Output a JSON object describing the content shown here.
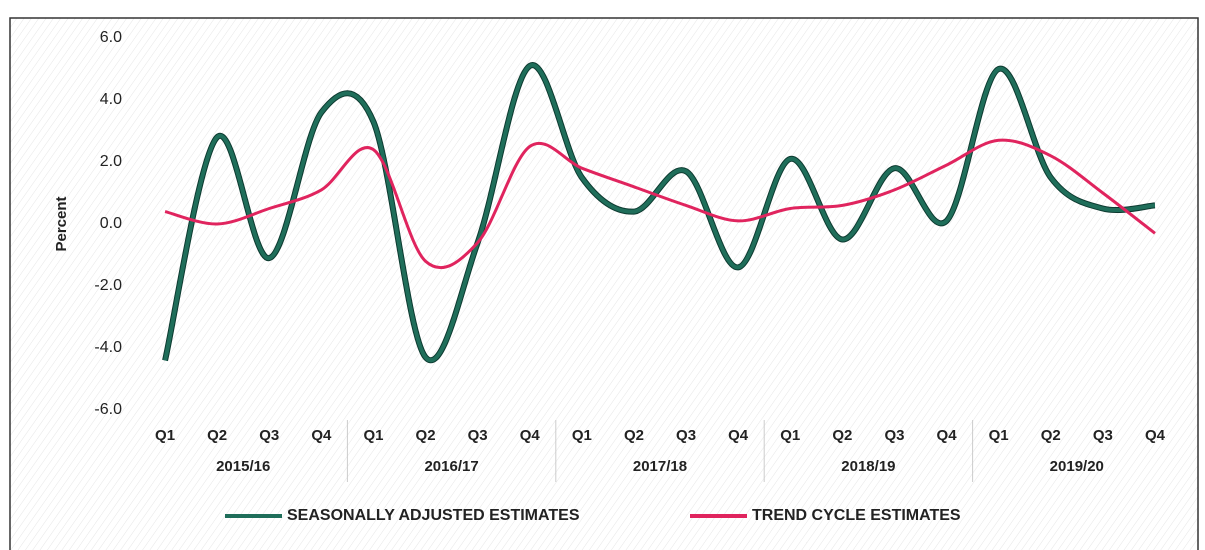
{
  "chart_data": {
    "type": "line",
    "y_label": "Percent",
    "categories": [
      "Q1",
      "Q2",
      "Q3",
      "Q4",
      "Q1",
      "Q2",
      "Q3",
      "Q4",
      "Q1",
      "Q2",
      "Q3",
      "Q4",
      "Q1",
      "Q2",
      "Q3",
      "Q4",
      "Q1",
      "Q2",
      "Q3",
      "Q4"
    ],
    "category_groups": [
      "2015/16",
      "2016/17",
      "2017/18",
      "2018/19",
      "2019/20"
    ],
    "series": [
      {
        "name": "SEASONALLY ADJUSTED ESTIMATES",
        "color": "#1f6e5a",
        "values": [
          -4.4,
          2.8,
          -1.1,
          3.6,
          3.3,
          -4.3,
          -0.6,
          5.1,
          1.5,
          0.4,
          1.7,
          -1.4,
          2.1,
          -0.5,
          1.8,
          0.1,
          5.0,
          1.5,
          0.5,
          0.6
        ]
      },
      {
        "name": "TREND CYCLE ESTIMATES",
        "color": "#e0245e",
        "values": [
          0.4,
          0.0,
          0.5,
          1.1,
          2.4,
          -1.2,
          -0.6,
          2.5,
          1.8,
          1.2,
          0.6,
          0.1,
          0.5,
          0.6,
          1.1,
          1.9,
          2.7,
          2.2,
          1.0,
          -0.3
        ]
      }
    ],
    "ylim": [
      -6,
      6
    ],
    "yticks": [
      {
        "value": -6,
        "label": "-6.0"
      },
      {
        "value": -4,
        "label": "-4.0"
      },
      {
        "value": -2,
        "label": "-2.0"
      },
      {
        "value": 0,
        "label": "0.0"
      },
      {
        "value": 2,
        "label": "2.0"
      },
      {
        "value": 4,
        "label": "4.0"
      },
      {
        "value": 6,
        "label": "6.0"
      }
    ],
    "grid": false,
    "legend": "bottom"
  }
}
